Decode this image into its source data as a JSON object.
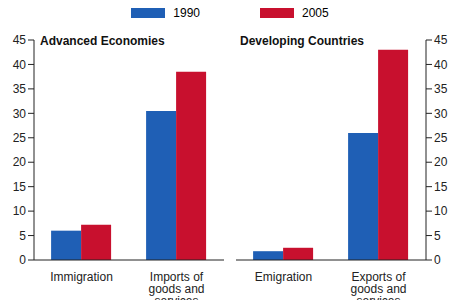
{
  "chart_data": [
    {
      "type": "bar",
      "title": "Advanced Economies",
      "categories": [
        "Immigration",
        "Imports of goods and services"
      ],
      "series": [
        {
          "name": "1990",
          "color": "#1f5fb5",
          "values": [
            6,
            30.5
          ]
        },
        {
          "name": "2005",
          "color": "#c8102e",
          "values": [
            7.2,
            38.5
          ]
        }
      ],
      "ylim": [
        0,
        45
      ],
      "yticks": [
        0,
        5,
        10,
        15,
        20,
        25,
        30,
        35,
        40,
        45
      ],
      "legend": "top",
      "grid": false
    },
    {
      "type": "bar",
      "title": "Developing Countries",
      "categories": [
        "Emigration",
        "Exports of goods and services"
      ],
      "series": [
        {
          "name": "1990",
          "color": "#1f5fb5",
          "values": [
            1.8,
            26
          ]
        },
        {
          "name": "2005",
          "color": "#c8102e",
          "values": [
            2.5,
            43
          ]
        }
      ],
      "ylim": [
        0,
        45
      ],
      "yticks": [
        0,
        5,
        10,
        15,
        20,
        25,
        30,
        35,
        40,
        45
      ],
      "grid": false
    }
  ]
}
